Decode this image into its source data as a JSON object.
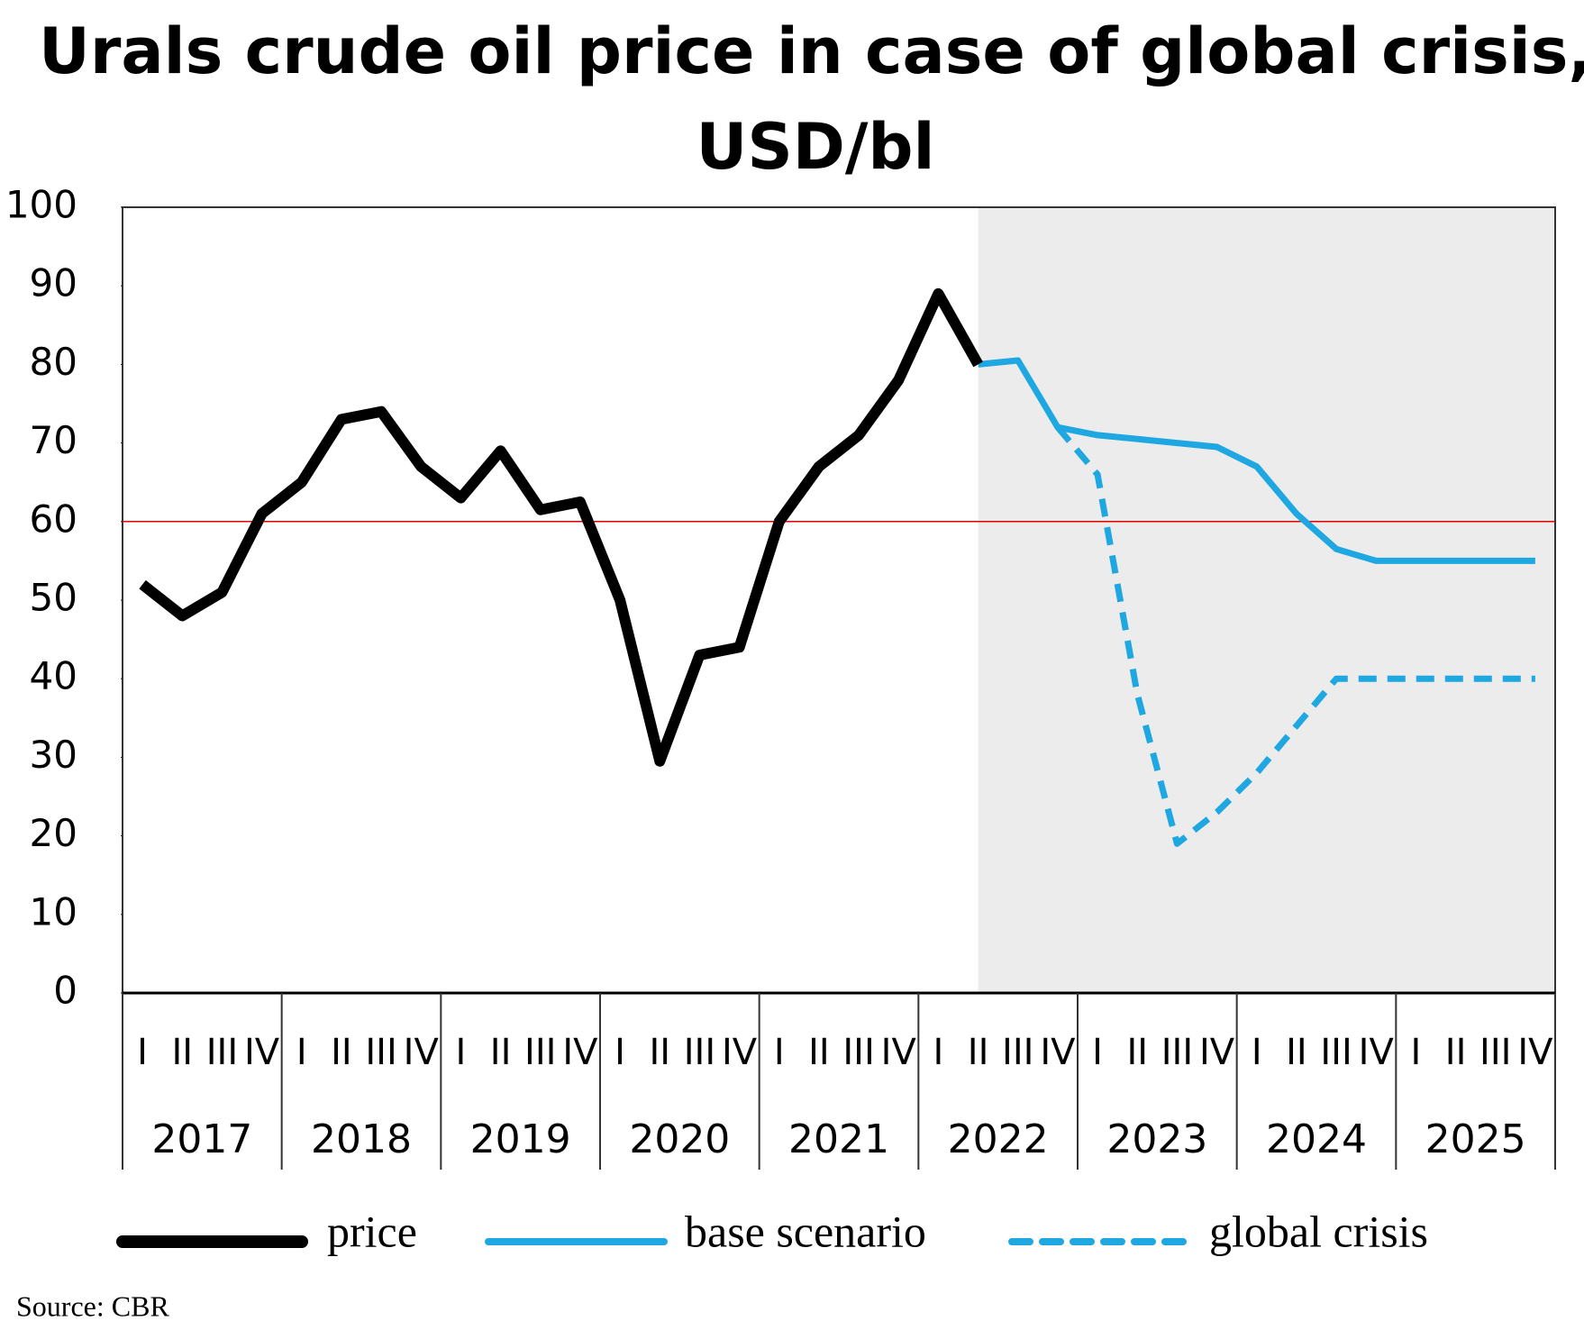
{
  "chart_data": {
    "type": "line",
    "title": [
      "Urals crude oil price in case of global crisis,",
      "USD/bl"
    ],
    "categories": [
      "I",
      "II",
      "III",
      "IV",
      "I",
      "II",
      "III",
      "IV",
      "I",
      "II",
      "III",
      "IV",
      "I",
      "II",
      "III",
      "IV",
      "I",
      "II",
      "III",
      "IV",
      "I",
      "II",
      "III",
      "IV",
      "I",
      "II",
      "III",
      "IV",
      "I",
      "II",
      "III",
      "IV",
      "I",
      "II",
      "III",
      "IV"
    ],
    "years": [
      "2017",
      "2018",
      "2019",
      "2020",
      "2021",
      "2022",
      "2023",
      "2024",
      "2025"
    ],
    "series": [
      {
        "name": "price",
        "color": "#000000",
        "dash": false,
        "values": [
          52,
          48,
          51,
          61,
          65,
          73,
          74,
          67,
          63,
          69,
          61.5,
          62.5,
          50,
          29.5,
          43,
          44,
          60,
          67,
          71,
          78,
          89,
          80,
          null,
          null,
          null,
          null,
          null,
          null,
          null,
          null,
          null,
          null,
          null,
          null,
          null,
          null
        ]
      },
      {
        "name": "base scenario",
        "color": "#1ea7e1",
        "dash": false,
        "values": [
          null,
          null,
          null,
          null,
          null,
          null,
          null,
          null,
          null,
          null,
          null,
          null,
          null,
          null,
          null,
          null,
          null,
          null,
          null,
          null,
          null,
          80,
          80.5,
          72,
          71,
          70.5,
          70,
          69.5,
          67,
          61,
          56.5,
          55,
          55,
          55,
          55,
          55
        ]
      },
      {
        "name": "global crisis",
        "color": "#1ea7e1",
        "dash": true,
        "values": [
          null,
          null,
          null,
          null,
          null,
          null,
          null,
          null,
          null,
          null,
          null,
          null,
          null,
          null,
          null,
          null,
          null,
          null,
          null,
          null,
          null,
          null,
          null,
          72,
          66,
          38,
          19,
          23,
          28,
          34,
          40,
          40,
          40,
          40,
          40,
          40
        ]
      }
    ],
    "ylim": [
      0,
      100
    ],
    "yticks": [
      0,
      10,
      20,
      30,
      40,
      50,
      60,
      70,
      80,
      90,
      100
    ],
    "hline": {
      "value": 60,
      "color": "#e00000"
    },
    "forecast_shading": "#ececec",
    "source": "Source: CBR"
  }
}
